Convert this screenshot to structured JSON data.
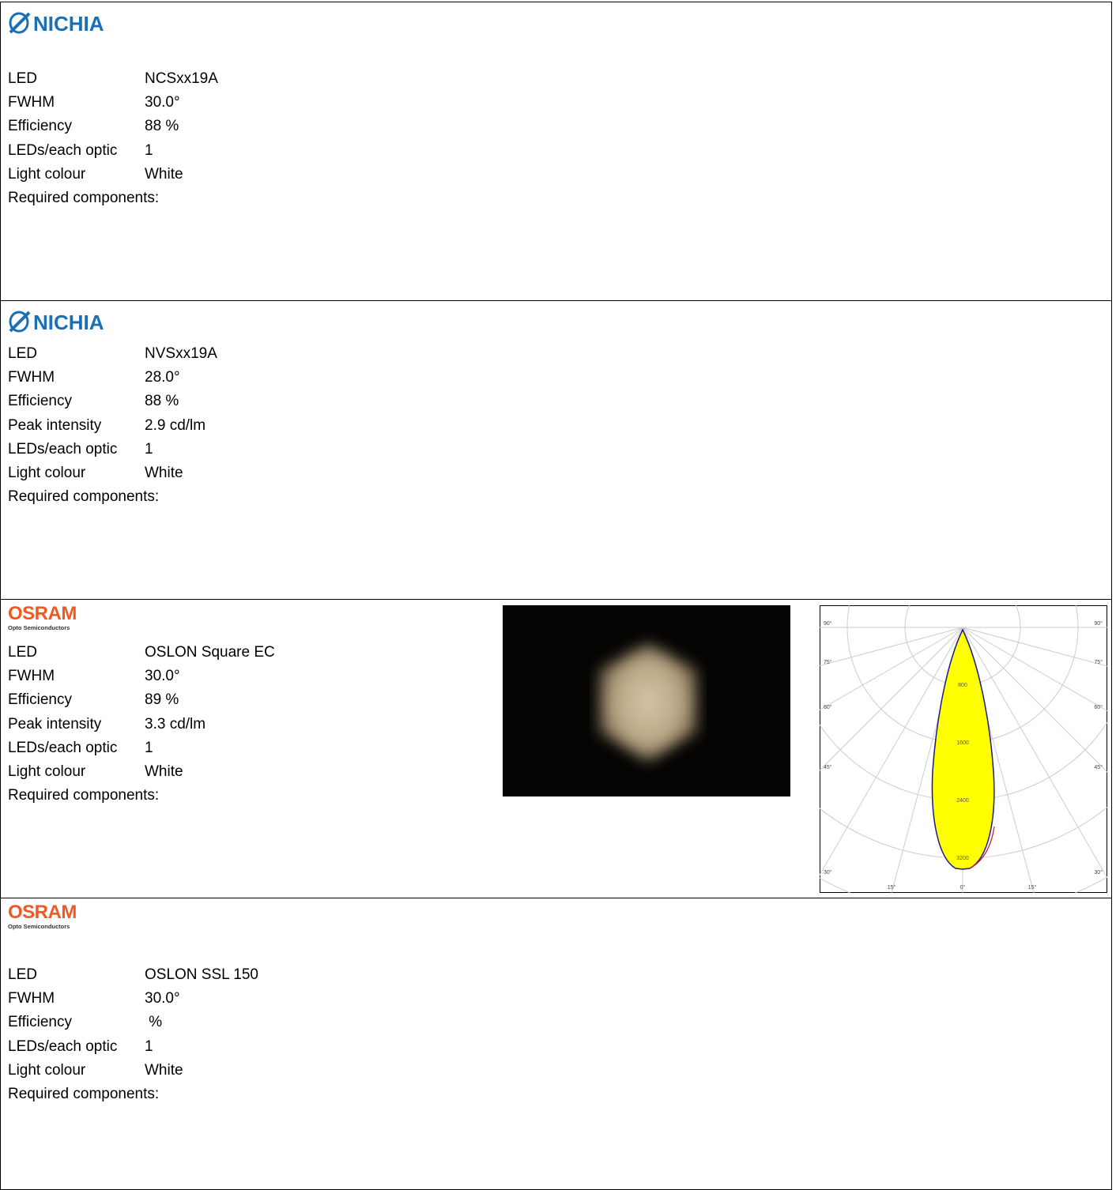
{
  "sections": [
    {
      "brand": {
        "name": "NICHIA"
      },
      "rows": [
        {
          "label": "LED",
          "value": "NCSxx19A"
        },
        {
          "label": "FWHM",
          "value": "30.0°"
        },
        {
          "label": "Efficiency",
          "value": "88 %"
        },
        {
          "label": "LEDs/each optic",
          "value": "1"
        },
        {
          "label": "Light colour",
          "value": "White"
        },
        {
          "label": "Required components:",
          "value": ""
        }
      ]
    },
    {
      "brand": {
        "name": "NICHIA"
      },
      "rows": [
        {
          "label": "LED",
          "value": "NVSxx19A"
        },
        {
          "label": "FWHM",
          "value": "28.0°"
        },
        {
          "label": "Efficiency",
          "value": "88 %"
        },
        {
          "label": "Peak intensity",
          "value": "2.9 cd/lm"
        },
        {
          "label": "LEDs/each optic",
          "value": "1"
        },
        {
          "label": "Light colour",
          "value": "White"
        },
        {
          "label": "Required components:",
          "value": ""
        }
      ]
    },
    {
      "brand": {
        "name": "OSRAM",
        "subtitle": "Opto Semiconductors"
      },
      "rows": [
        {
          "label": "LED",
          "value": "OSLON Square EC"
        },
        {
          "label": "FWHM",
          "value": "30.0°"
        },
        {
          "label": "Efficiency",
          "value": "89 %"
        },
        {
          "label": "Peak intensity",
          "value": "3.3 cd/lm"
        },
        {
          "label": "LEDs/each optic",
          "value": "1"
        },
        {
          "label": "Light colour",
          "value": "White"
        },
        {
          "label": "Required components:",
          "value": ""
        }
      ],
      "polar_diagram": {
        "left_angle_labels": [
          "90°",
          "75°",
          "60°",
          "45°",
          "30°"
        ],
        "right_angle_labels": [
          "90°",
          "75°",
          "60°",
          "45°",
          "30°"
        ],
        "bottom_angle_labels": [
          "15°",
          "0°",
          "15°"
        ],
        "intensity_labels": [
          "800",
          "1600",
          "2400",
          "3200"
        ]
      }
    },
    {
      "brand": {
        "name": "OSRAM",
        "subtitle": "Opto Semiconductors"
      },
      "rows": [
        {
          "label": "LED",
          "value": "OSLON SSL 150"
        },
        {
          "label": "FWHM",
          "value": "30.0°"
        },
        {
          "label": "Efficiency",
          "value": " %"
        },
        {
          "label": "LEDs/each optic",
          "value": "1"
        },
        {
          "label": "Light colour",
          "value": "White"
        },
        {
          "label": "Required components:",
          "value": ""
        }
      ]
    }
  ]
}
